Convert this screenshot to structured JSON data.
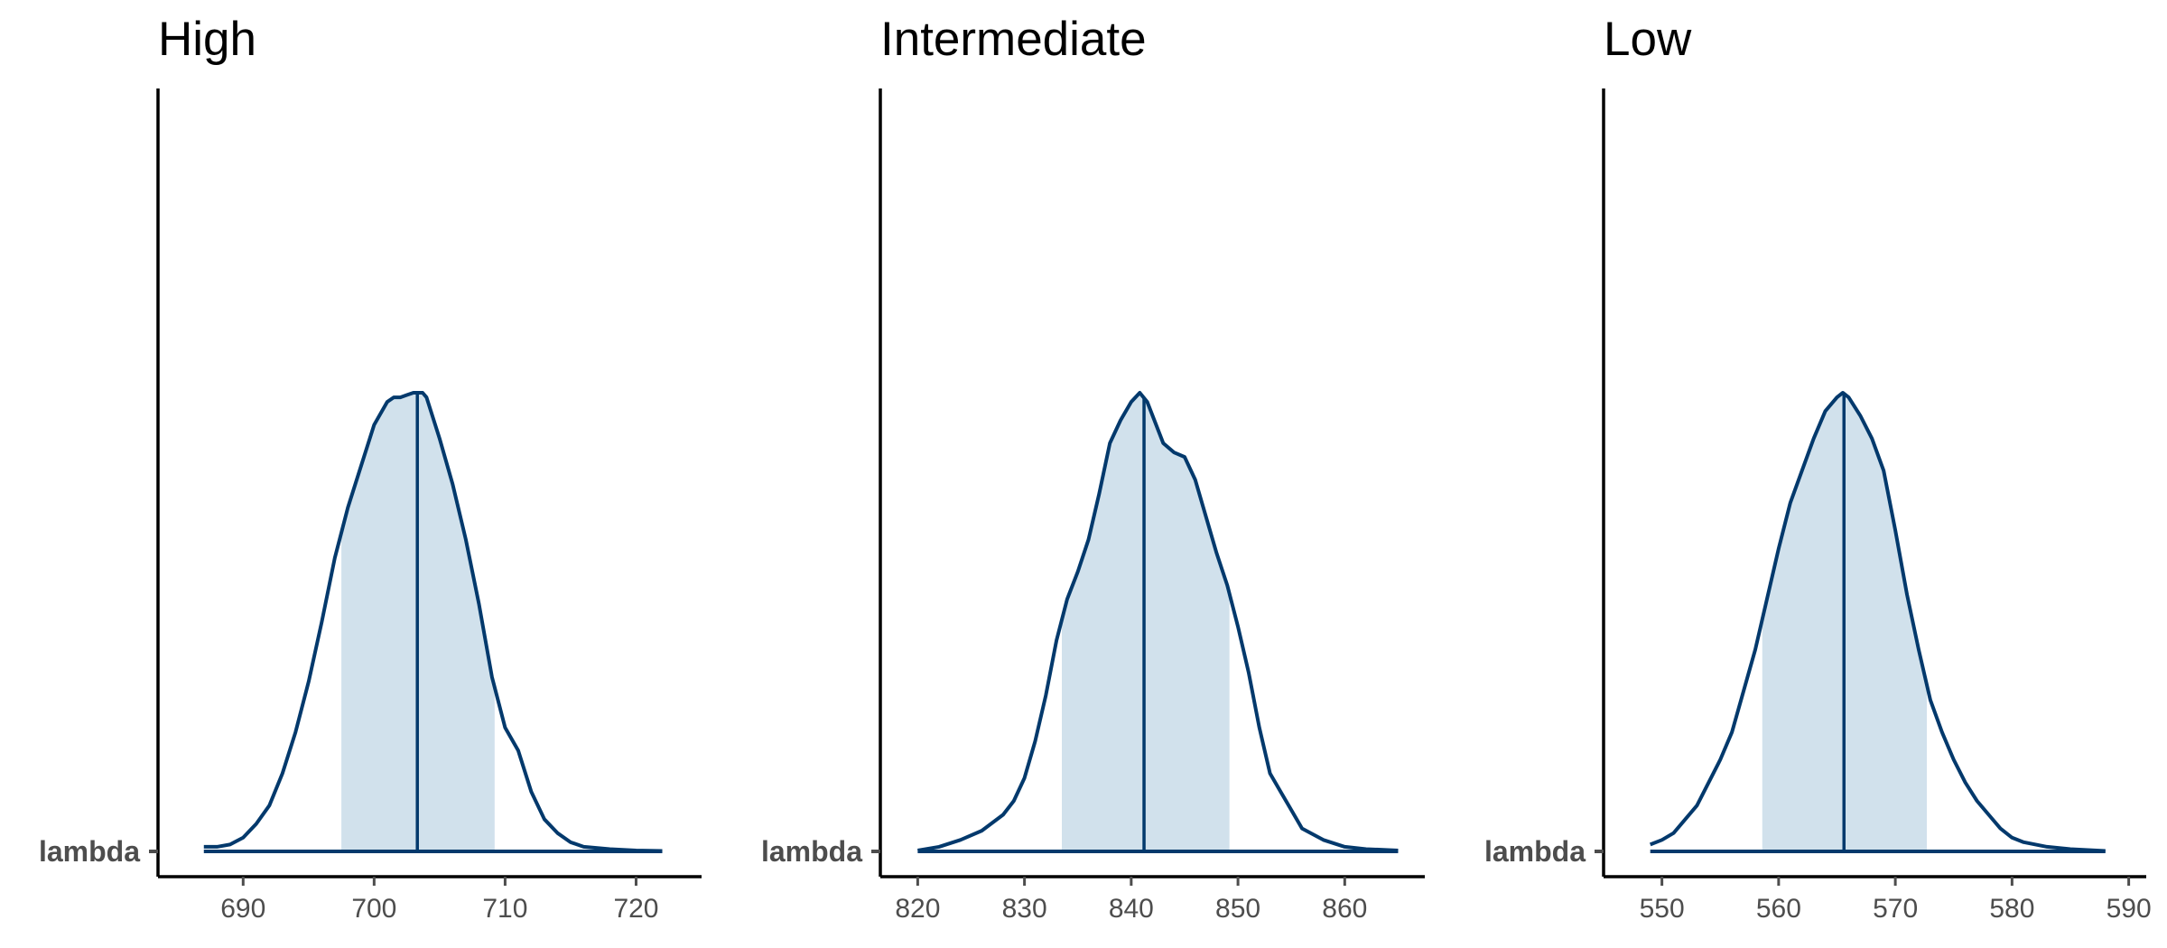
{
  "colors": {
    "line": "#03396c",
    "fill": "#d1e1ec",
    "axis": "#000000",
    "tick_text": "#4d4d4d"
  },
  "chart_data": [
    {
      "type": "area",
      "title": "High",
      "ylabel_category": "lambda",
      "xlim": [
        683.5,
        725
      ],
      "x_ticks": [
        690,
        700,
        710,
        720
      ],
      "x_range": [
        687,
        722
      ],
      "median": 703.3,
      "interval": [
        697.5,
        709.2
      ],
      "density": {
        "x": [
          687,
          688,
          689,
          690,
          691,
          692,
          693,
          694,
          695,
          696,
          697,
          698,
          699,
          700,
          701,
          701.5,
          702,
          702.5,
          703,
          703.7,
          704,
          705,
          706,
          707,
          708,
          709,
          710,
          711,
          712,
          713,
          714,
          715,
          716,
          718,
          720,
          722
        ],
        "y": [
          0.01,
          0.01,
          0.015,
          0.03,
          0.06,
          0.1,
          0.17,
          0.26,
          0.37,
          0.5,
          0.64,
          0.75,
          0.84,
          0.93,
          0.98,
          0.99,
          0.99,
          0.995,
          1.0,
          1.0,
          0.99,
          0.9,
          0.8,
          0.68,
          0.54,
          0.38,
          0.27,
          0.22,
          0.13,
          0.07,
          0.04,
          0.02,
          0.01,
          0.005,
          0.002,
          0.001
        ]
      }
    },
    {
      "type": "area",
      "title": "Intermediate",
      "ylabel_category": "lambda",
      "xlim": [
        816.5,
        867.5
      ],
      "x_ticks": [
        820,
        830,
        840,
        850,
        860
      ],
      "x_range": [
        820,
        865
      ],
      "median": 841.2,
      "interval": [
        833.5,
        849.2
      ],
      "density": {
        "x": [
          820,
          822,
          824,
          826,
          828,
          829,
          830,
          831,
          832,
          833,
          834,
          835,
          836,
          837,
          838,
          839,
          840,
          840.8,
          841.5,
          842,
          843,
          844,
          845,
          846,
          847,
          848,
          849,
          850,
          851,
          852,
          853,
          854,
          855,
          856,
          858,
          860,
          862,
          865
        ],
        "y": [
          0.002,
          0.01,
          0.025,
          0.045,
          0.08,
          0.11,
          0.16,
          0.24,
          0.34,
          0.46,
          0.55,
          0.61,
          0.68,
          0.78,
          0.89,
          0.94,
          0.98,
          1.0,
          0.98,
          0.95,
          0.89,
          0.87,
          0.86,
          0.81,
          0.73,
          0.65,
          0.58,
          0.49,
          0.39,
          0.27,
          0.17,
          0.13,
          0.09,
          0.05,
          0.025,
          0.01,
          0.005,
          0.002
        ]
      }
    },
    {
      "type": "area",
      "title": "Low",
      "ylabel_category": "lambda",
      "xlim": [
        545,
        591.5
      ],
      "x_ticks": [
        550,
        560,
        570,
        580,
        590
      ],
      "x_range": [
        549,
        588
      ],
      "median": 565.6,
      "interval": [
        558.6,
        572.7
      ],
      "density": {
        "x": [
          549,
          550,
          551,
          552,
          553,
          554,
          555,
          556,
          557,
          558,
          559,
          560,
          561,
          562,
          563,
          564,
          565,
          565.5,
          566,
          567,
          568,
          569,
          570,
          571,
          572,
          573,
          574,
          575,
          576,
          577,
          578,
          579,
          580,
          581,
          583,
          585,
          588
        ],
        "y": [
          0.015,
          0.025,
          0.04,
          0.07,
          0.1,
          0.15,
          0.2,
          0.26,
          0.35,
          0.44,
          0.55,
          0.66,
          0.76,
          0.83,
          0.9,
          0.96,
          0.99,
          1.0,
          0.99,
          0.95,
          0.9,
          0.83,
          0.7,
          0.56,
          0.44,
          0.33,
          0.26,
          0.2,
          0.15,
          0.11,
          0.08,
          0.05,
          0.03,
          0.02,
          0.01,
          0.005,
          0.001
        ]
      }
    }
  ]
}
